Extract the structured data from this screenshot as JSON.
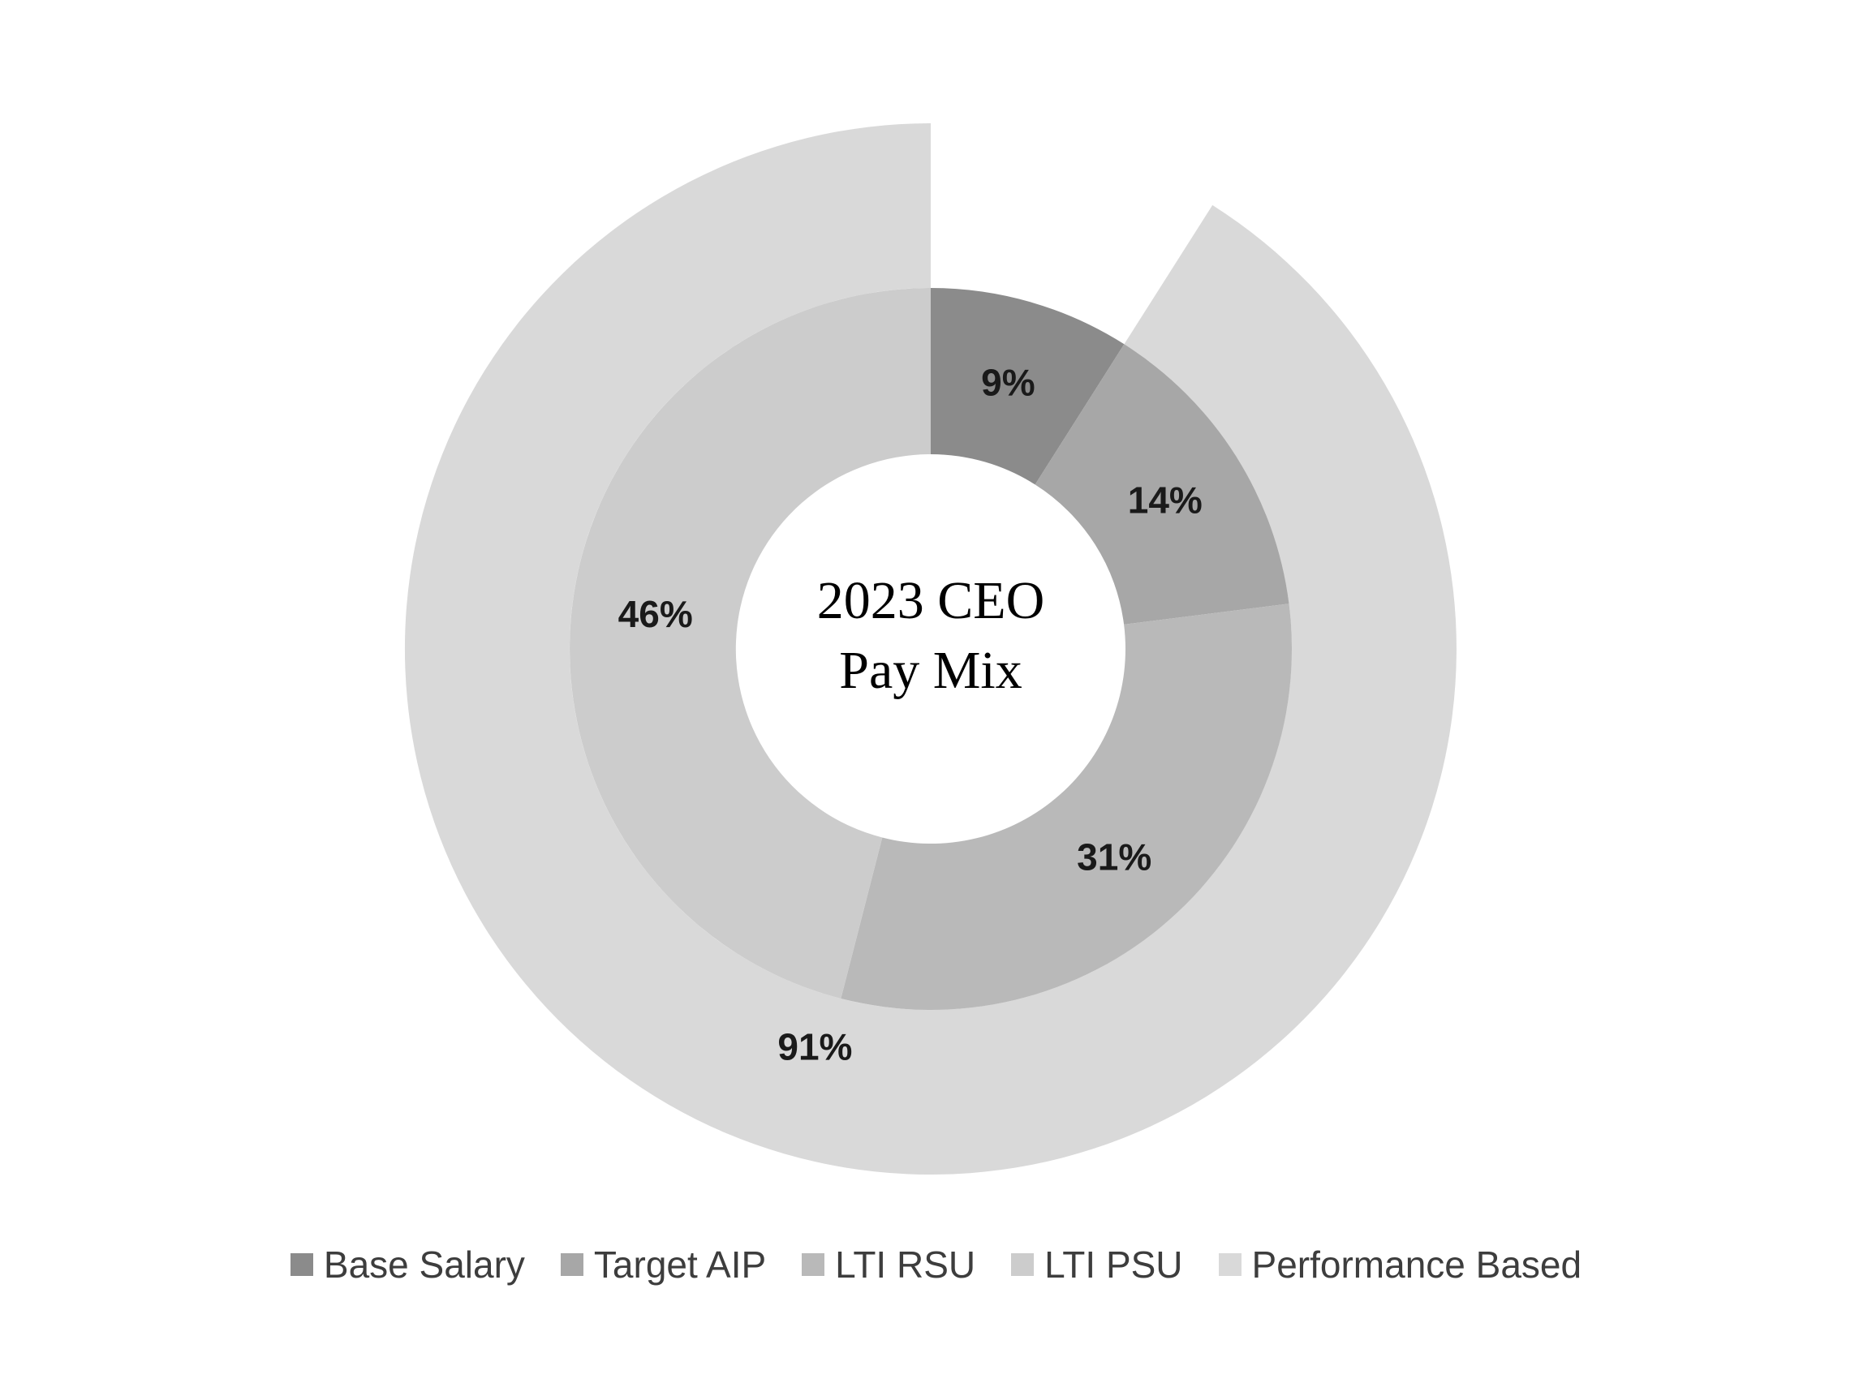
{
  "chart_data": {
    "type": "pie",
    "subtype": "nested-donut",
    "title": "2023 CEO Pay Mix",
    "center_title_lines": [
      "2023 CEO",
      "Pay Mix"
    ],
    "background_color": "#ffffff",
    "label_color": "#1a1a1a",
    "inner_ring": {
      "name": "pay-components",
      "start_angle_pct": 0,
      "segments": [
        {
          "label": "Base Salary",
          "value": 9,
          "display": "9%",
          "color": "#8b8b8b"
        },
        {
          "label": "Target AIP",
          "value": 14,
          "display": "14%",
          "color": "#a7a7a7"
        },
        {
          "label": "LTI RSU",
          "value": 31,
          "display": "31%",
          "color": "#b9b9b9"
        },
        {
          "label": "LTI PSU",
          "value": 46,
          "display": "46%",
          "color": "#cccccc"
        }
      ]
    },
    "outer_ring": {
      "name": "performance-based-share",
      "segments": [
        {
          "label": "Performance Based",
          "value": 91,
          "display": "91%",
          "color": "#d9d9d9",
          "start_pct": 9,
          "end_pct": 100
        }
      ]
    },
    "legend": [
      {
        "label": "Base Salary",
        "color": "#8b8b8b"
      },
      {
        "label": "Target AIP",
        "color": "#a7a7a7"
      },
      {
        "label": "LTI RSU",
        "color": "#b9b9b9"
      },
      {
        "label": "LTI PSU",
        "color": "#cccccc"
      },
      {
        "label": "Performance Based",
        "color": "#d9d9d9"
      }
    ],
    "legend_position": "bottom"
  }
}
